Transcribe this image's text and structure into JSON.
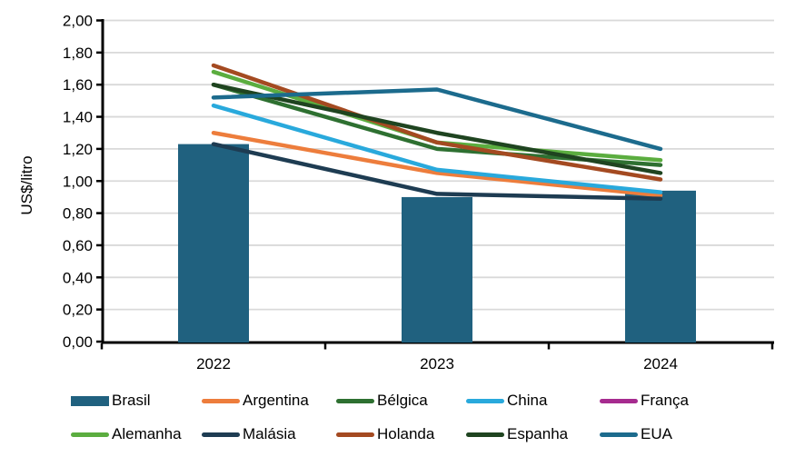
{
  "chart_data": {
    "type": "combo-bar-line",
    "title": "",
    "ylabel": "US$/litro",
    "xlabel": "",
    "categories": [
      "2022",
      "2023",
      "2024"
    ],
    "ylim": [
      0,
      2
    ],
    "ytick_step": 0.2,
    "decimal_separator": ",",
    "grid": true,
    "legend_position": "bottom",
    "axis_color": "#000000",
    "gridline_color": "#D9D9D9",
    "text_color": "#000000",
    "series": [
      {
        "name": "Brasil",
        "type": "bar",
        "color": "#20617F",
        "values": [
          1.23,
          0.9,
          0.94
        ]
      },
      {
        "name": "Argentina",
        "type": "line",
        "color": "#ED7D3C",
        "values": [
          1.3,
          1.05,
          0.91
        ]
      },
      {
        "name": "Bélgica",
        "type": "line",
        "color": "#2E7031",
        "values": [
          1.6,
          1.2,
          1.1
        ]
      },
      {
        "name": "China",
        "type": "line",
        "color": "#29A9DC",
        "values": [
          1.47,
          1.07,
          0.93
        ]
      },
      {
        "name": "França",
        "type": "line",
        "color": "#A62B8F",
        "values": []
      },
      {
        "name": "Alemanha",
        "type": "line",
        "color": "#5BAD3F",
        "values": [
          1.68,
          1.24,
          1.13
        ]
      },
      {
        "name": "Malásia",
        "type": "line",
        "color": "#1E3C52",
        "values": [
          1.23,
          0.92,
          0.89
        ]
      },
      {
        "name": "Holanda",
        "type": "line",
        "color": "#A44A21",
        "values": [
          1.72,
          1.24,
          1.01
        ]
      },
      {
        "name": "Espanha",
        "type": "line",
        "color": "#1F4420",
        "values": [
          1.6,
          1.3,
          1.05
        ]
      },
      {
        "name": "EUA",
        "type": "line",
        "color": "#1C6B8D",
        "values": [
          1.52,
          1.57,
          1.2
        ]
      }
    ]
  }
}
